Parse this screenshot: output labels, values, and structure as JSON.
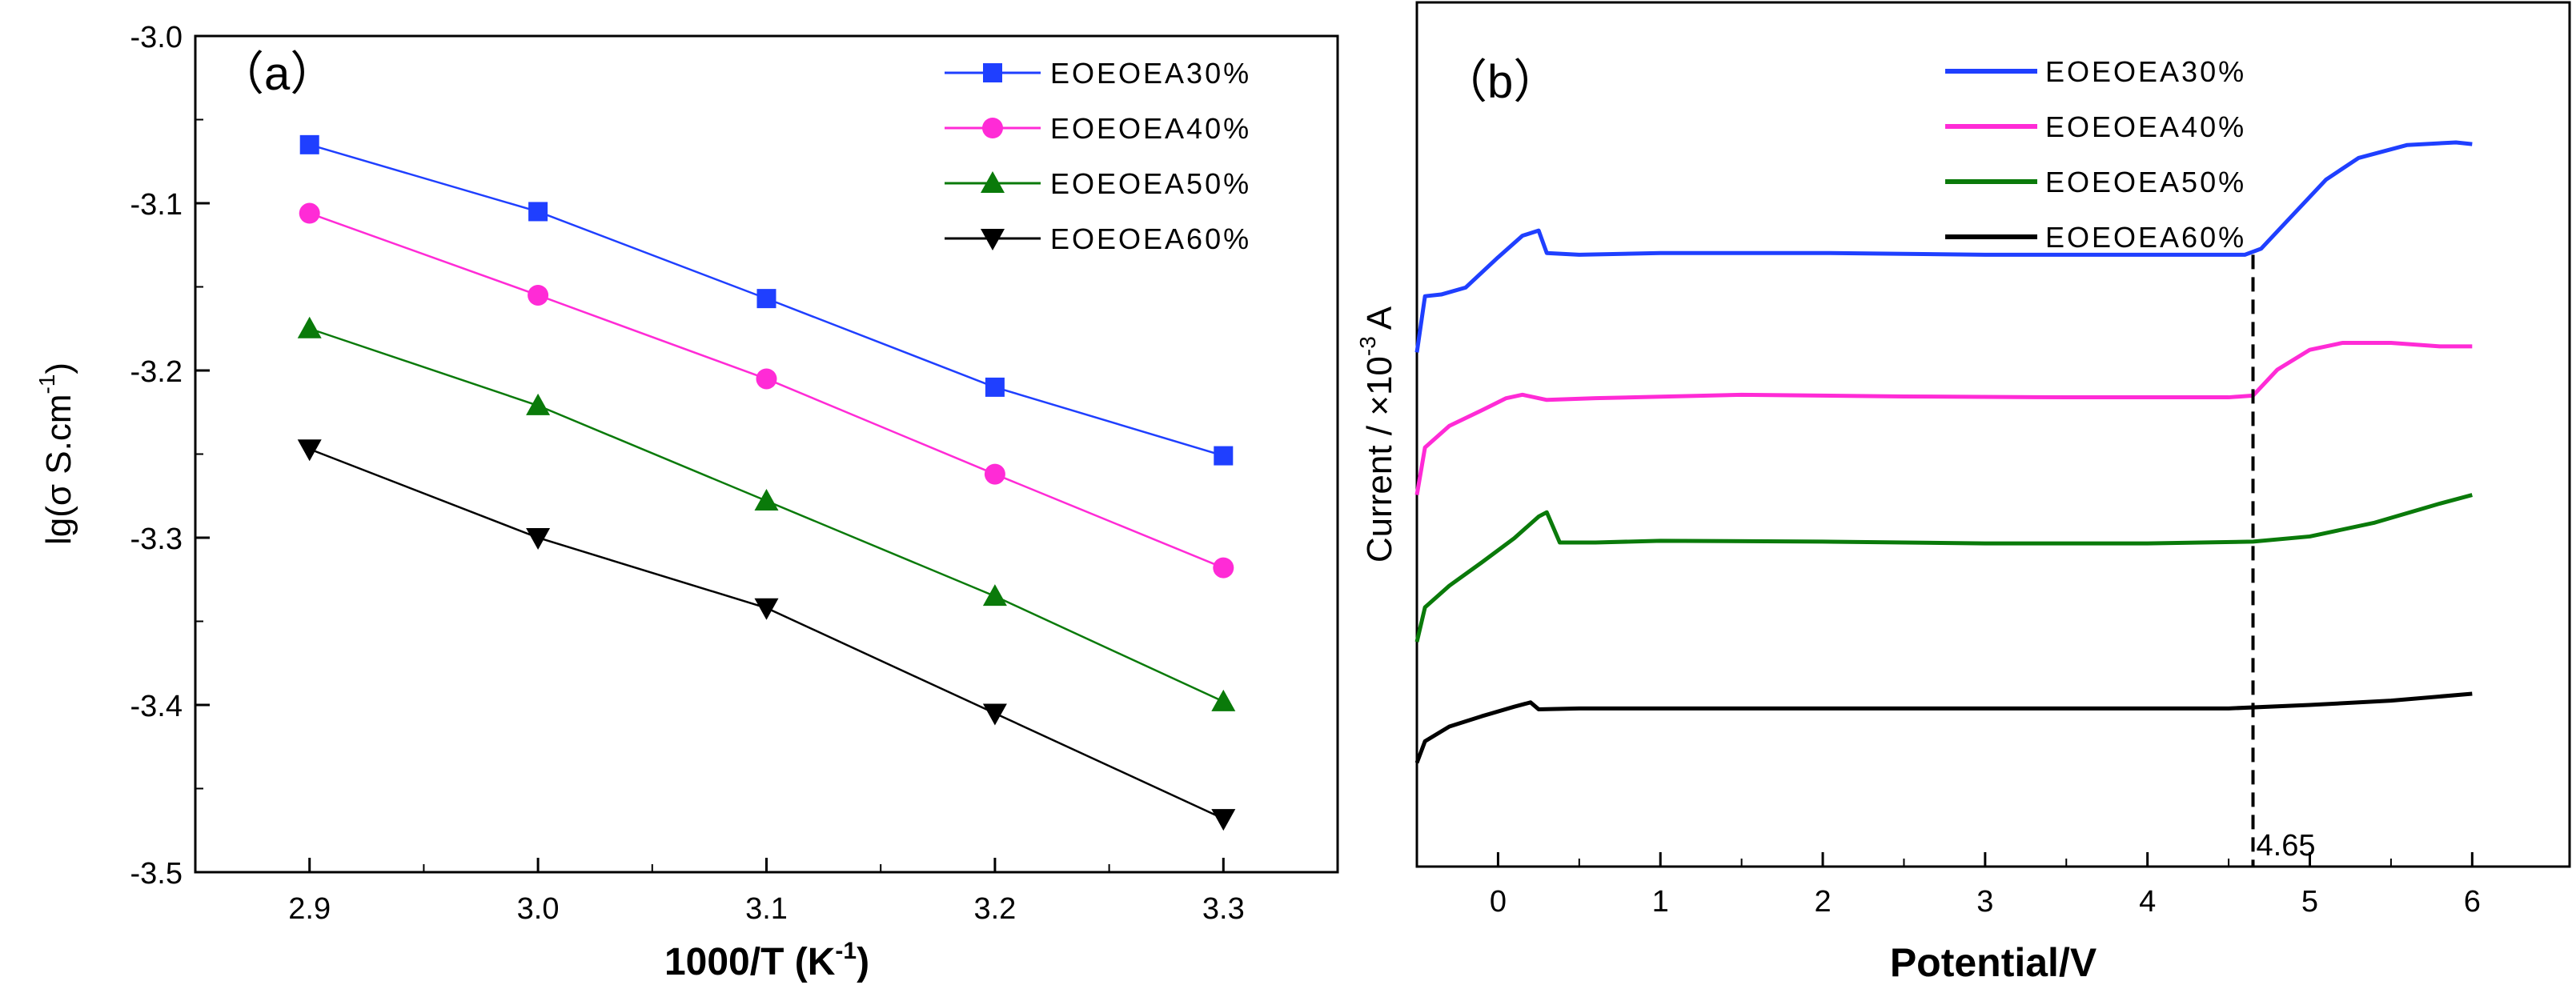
{
  "chart_data": [
    {
      "type": "line",
      "panel_label": "（a）",
      "xlabel_main": "1000/T  (K",
      "xlabel_sup": "-1",
      "xlabel_close": ")",
      "ylabel_main": "lg(σ  S.cm",
      "ylabel_sup": "-1",
      "ylabel_close": ")",
      "xlim": [
        2.85,
        3.35
      ],
      "ylim": [
        -3.5,
        -3.0
      ],
      "xticks": [
        "2.9",
        "3.0",
        "3.1",
        "3.2",
        "3.3"
      ],
      "yticks": [
        "-3.0",
        "-3.1",
        "-3.2",
        "-3.3",
        "-3.4",
        "-3.5"
      ],
      "legend_position": "top-right",
      "x": [
        2.9,
        3.0,
        3.1,
        3.2,
        3.3
      ],
      "series": [
        {
          "name": "EOEOEA30%",
          "color": "#1f3fff",
          "marker": "square",
          "values": [
            -3.065,
            -3.105,
            -3.157,
            -3.21,
            -3.251
          ]
        },
        {
          "name": "EOEOEA40%",
          "color": "#ff2bd6",
          "marker": "circle",
          "values": [
            -3.106,
            -3.155,
            -3.205,
            -3.262,
            -3.318
          ]
        },
        {
          "name": "EOEOEA50%",
          "color": "#0a7a0a",
          "marker": "triangle-up",
          "values": [
            -3.175,
            -3.221,
            -3.278,
            -3.335,
            -3.398
          ]
        },
        {
          "name": "EOEOEA60%",
          "color": "#000000",
          "marker": "triangle-down",
          "values": [
            -3.247,
            -3.3,
            -3.342,
            -3.405,
            -3.468
          ]
        }
      ]
    },
    {
      "type": "line",
      "panel_label": "（b）",
      "xlabel": "Potential/V",
      "ylabel_main": "Current / ×10",
      "ylabel_sup": "-3",
      "ylabel_close": "A",
      "xlim": [
        -0.5,
        6.6
      ],
      "ylim": [
        0,
        10
      ],
      "xticks": [
        "0",
        "1",
        "2",
        "3",
        "4",
        "5",
        "6"
      ],
      "legend_position": "top-right",
      "annotation": {
        "text": "4.65",
        "x": 4.65
      },
      "series": [
        {
          "name": "EOEOEA30%",
          "color": "#1f3fff",
          "points": [
            [
              -0.5,
              5.95
            ],
            [
              -0.45,
              6.6
            ],
            [
              -0.35,
              6.62
            ],
            [
              -0.2,
              6.7
            ],
            [
              0.0,
              7.05
            ],
            [
              0.15,
              7.3
            ],
            [
              0.25,
              7.36
            ],
            [
              0.3,
              7.1
            ],
            [
              0.5,
              7.08
            ],
            [
              1.0,
              7.1
            ],
            [
              2.0,
              7.1
            ],
            [
              3.0,
              7.08
            ],
            [
              4.0,
              7.08
            ],
            [
              4.6,
              7.08
            ],
            [
              4.7,
              7.15
            ],
            [
              4.9,
              7.55
            ],
            [
              5.1,
              7.95
            ],
            [
              5.3,
              8.2
            ],
            [
              5.6,
              8.35
            ],
            [
              5.9,
              8.38
            ],
            [
              6.0,
              8.36
            ]
          ]
        },
        {
          "name": "EOEOEA40%",
          "color": "#ff2bd6",
          "points": [
            [
              -0.5,
              4.3
            ],
            [
              -0.45,
              4.85
            ],
            [
              -0.3,
              5.1
            ],
            [
              -0.1,
              5.28
            ],
            [
              0.05,
              5.42
            ],
            [
              0.15,
              5.46
            ],
            [
              0.3,
              5.4
            ],
            [
              0.6,
              5.42
            ],
            [
              1.5,
              5.46
            ],
            [
              2.5,
              5.44
            ],
            [
              3.5,
              5.43
            ],
            [
              4.5,
              5.43
            ],
            [
              4.65,
              5.45
            ],
            [
              4.8,
              5.75
            ],
            [
              5.0,
              5.98
            ],
            [
              5.2,
              6.06
            ],
            [
              5.5,
              6.06
            ],
            [
              5.8,
              6.02
            ],
            [
              6.0,
              6.02
            ]
          ]
        },
        {
          "name": "EOEOEA50%",
          "color": "#0a7a0a",
          "points": [
            [
              -0.5,
              2.6
            ],
            [
              -0.45,
              3.0
            ],
            [
              -0.3,
              3.25
            ],
            [
              -0.1,
              3.52
            ],
            [
              0.1,
              3.8
            ],
            [
              0.25,
              4.05
            ],
            [
              0.3,
              4.1
            ],
            [
              0.38,
              3.75
            ],
            [
              0.6,
              3.75
            ],
            [
              1.0,
              3.77
            ],
            [
              2.0,
              3.76
            ],
            [
              3.0,
              3.74
            ],
            [
              4.0,
              3.74
            ],
            [
              4.65,
              3.76
            ],
            [
              5.0,
              3.82
            ],
            [
              5.4,
              3.98
            ],
            [
              5.8,
              4.2
            ],
            [
              6.0,
              4.3
            ]
          ]
        },
        {
          "name": "EOEOEA60%",
          "color": "#000000",
          "points": [
            [
              -0.5,
              1.2
            ],
            [
              -0.45,
              1.45
            ],
            [
              -0.3,
              1.62
            ],
            [
              -0.1,
              1.74
            ],
            [
              0.1,
              1.85
            ],
            [
              0.2,
              1.9
            ],
            [
              0.25,
              1.82
            ],
            [
              0.5,
              1.83
            ],
            [
              1.5,
              1.83
            ],
            [
              2.5,
              1.83
            ],
            [
              3.5,
              1.83
            ],
            [
              4.5,
              1.83
            ],
            [
              5.0,
              1.87
            ],
            [
              5.5,
              1.92
            ],
            [
              6.0,
              2.0
            ]
          ]
        }
      ]
    }
  ]
}
